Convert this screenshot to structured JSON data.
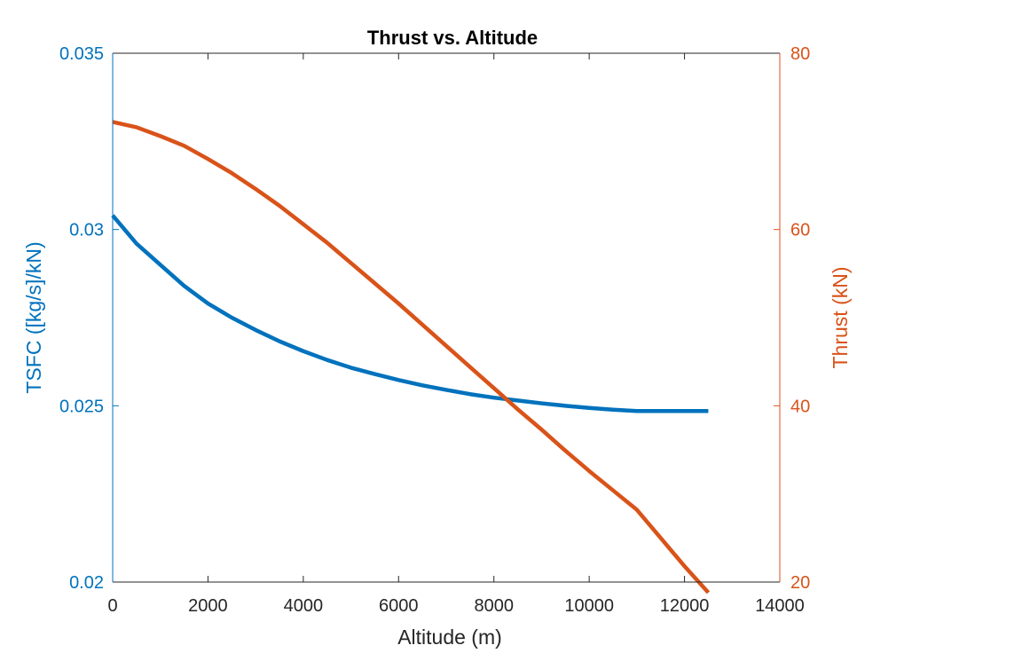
{
  "chart_data": {
    "type": "line",
    "title": "Thrust vs. Altitude",
    "xlabel": "Altitude (m)",
    "ylabel_left": "TSFC ([kg/s]/kN)",
    "ylabel_right": "Thrust (kN)",
    "xlim": [
      0,
      14000
    ],
    "ylim_left": [
      0.02,
      0.035
    ],
    "ylim_right": [
      20,
      80
    ],
    "x_ticks": [
      "0",
      "2000",
      "4000",
      "6000",
      "8000",
      "10000",
      "12000",
      "14000"
    ],
    "y_left_ticks": [
      "0.02",
      "0.025",
      "0.03",
      "0.035"
    ],
    "y_right_ticks": [
      "20",
      "40",
      "60",
      "80"
    ],
    "grid": false,
    "colors": {
      "left": "#0072BD",
      "right": "#D95319",
      "axes": "#262626"
    },
    "x": [
      0,
      500,
      1000,
      1500,
      2000,
      2500,
      3000,
      3500,
      4000,
      4500,
      5000,
      5500,
      6000,
      6500,
      7000,
      7500,
      8000,
      8500,
      9000,
      9500,
      10000,
      10500,
      11000,
      11500,
      12000,
      12500
    ],
    "series": [
      {
        "axis": "left",
        "values": [
          0.0304,
          0.0296,
          0.029,
          0.0284,
          0.0279,
          0.0275,
          0.02715,
          0.02683,
          0.02655,
          0.0263,
          0.02608,
          0.0259,
          0.02573,
          0.02558,
          0.02545,
          0.02533,
          0.02523,
          0.02515,
          0.02507,
          0.025,
          0.02494,
          0.02489,
          0.02485,
          0.02485,
          0.02485,
          0.02485
        ]
      },
      {
        "axis": "right",
        "values": [
          72.2,
          71.6,
          70.6,
          69.5,
          68.0,
          66.4,
          64.6,
          62.7,
          60.6,
          58.5,
          56.2,
          53.9,
          51.6,
          49.2,
          46.8,
          44.4,
          42.0,
          39.6,
          37.3,
          34.9,
          32.6,
          30.4,
          28.2,
          25.0,
          21.8,
          18.8
        ]
      }
    ]
  }
}
